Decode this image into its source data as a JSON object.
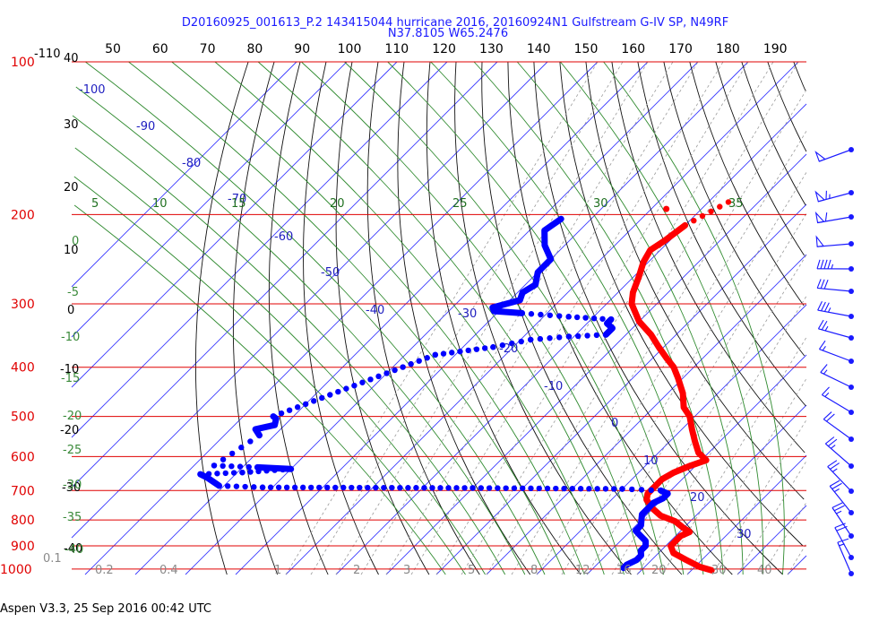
{
  "header": {
    "title_line1": "D20160925_001613_P.2 143415044 hurricane 2016, 20160924N1 Gulfstream G-IV SP, N49RF",
    "title_line2": "N37.8105 W65.2476"
  },
  "footer": {
    "text": "Aspen V3.3, 25 Sep 2016  00:42 UTC"
  },
  "chart_data": {
    "type": "line",
    "diagram": "skew-T log-P",
    "top_axis_ticks": [
      "50",
      "60",
      "70",
      "80",
      "90",
      "100",
      "110",
      "120",
      "130",
      "140",
      "150",
      "160",
      "170",
      "180",
      "190"
    ],
    "pressure_levels": [
      {
        "value": 100,
        "label": "100"
      },
      {
        "value": 200,
        "label": "200"
      },
      {
        "value": 300,
        "label": "300"
      },
      {
        "value": 400,
        "label": "400"
      },
      {
        "value": 500,
        "label": "500"
      },
      {
        "value": 600,
        "label": "600"
      },
      {
        "value": 700,
        "label": "700"
      },
      {
        "value": 800,
        "label": "800"
      },
      {
        "value": 900,
        "label": "900"
      },
      {
        "value": 1000,
        "label": "1000"
      }
    ],
    "left_temperature_labels": [
      "-110",
      "40",
      "30",
      "20",
      "10",
      "0",
      "-10",
      "-20",
      "-30",
      "-40"
    ],
    "isotherm_labels": [
      "-100",
      "-90",
      "-80",
      "-70",
      "-60",
      "-50",
      "-40",
      "-30",
      "-20",
      "-10",
      "0",
      "10",
      "20",
      "30"
    ],
    "mixing_ratio_labels_top": [
      "5",
      "10",
      "15",
      "20",
      "25",
      "30",
      "35"
    ],
    "theta_labels_left": [
      "0",
      "-5",
      "-10",
      "-15",
      "-20",
      "-25",
      "-30",
      "-35",
      "-40"
    ],
    "mixing_ratio_labels_bottom": [
      "0.1",
      "0.2",
      "0.4",
      "1",
      "2",
      "3",
      "5",
      "8",
      "12",
      "16",
      "20",
      "30",
      "40"
    ],
    "series": [
      {
        "role": "temperature",
        "color": "#ff0000",
        "points": [
          [
            189,
            -46
          ],
          [
            210,
            -50
          ],
          [
            225,
            -51
          ],
          [
            235,
            -52
          ],
          [
            248,
            -51
          ],
          [
            265,
            -49
          ],
          [
            285,
            -47
          ],
          [
            300,
            -45
          ],
          [
            325,
            -40
          ],
          [
            345,
            -35
          ],
          [
            365,
            -31
          ],
          [
            385,
            -27
          ],
          [
            400,
            -24
          ],
          [
            420,
            -21
          ],
          [
            450,
            -17
          ],
          [
            480,
            -14
          ],
          [
            500,
            -11
          ],
          [
            530,
            -8
          ],
          [
            560,
            -5
          ],
          [
            590,
            -2
          ],
          [
            610,
            1
          ],
          [
            625,
            -1
          ],
          [
            645,
            -3
          ],
          [
            665,
            -4
          ],
          [
            690,
            -4
          ],
          [
            710,
            -4
          ],
          [
            730,
            -3
          ],
          [
            760,
            0
          ],
          [
            785,
            3
          ],
          [
            805,
            7
          ],
          [
            830,
            10
          ],
          [
            845,
            12
          ],
          [
            860,
            11
          ],
          [
            880,
            11
          ],
          [
            900,
            11
          ],
          [
            930,
            13
          ],
          [
            960,
            17
          ],
          [
            990,
            21
          ],
          [
            1005,
            24
          ]
        ]
      },
      {
        "role": "dewpoint",
        "color": "#0000ff",
        "points": [
          [
            204,
            -76
          ],
          [
            215,
            -77
          ],
          [
            230,
            -74
          ],
          [
            245,
            -70
          ],
          [
            260,
            -70
          ],
          [
            275,
            -68
          ],
          [
            285,
            -69
          ],
          [
            295,
            -68
          ],
          [
            305,
            -72
          ],
          [
            310,
            -71
          ],
          [
            313,
            -65
          ],
          [
            318,
            -55
          ],
          [
            322,
            -46
          ],
          [
            328,
            -46
          ],
          [
            335,
            -44
          ],
          [
            345,
            -44
          ],
          [
            348,
            -51
          ],
          [
            353,
            -58
          ],
          [
            365,
            -64
          ],
          [
            378,
            -74
          ],
          [
            500,
            -94
          ],
          [
            505,
            -93
          ],
          [
            520,
            -92
          ],
          [
            530,
            -95
          ],
          [
            545,
            -93
          ],
          [
            625,
            -96
          ],
          [
            630,
            -87
          ],
          [
            635,
            -80
          ],
          [
            645,
            -89
          ],
          [
            650,
            -97
          ],
          [
            660,
            -95
          ],
          [
            685,
            -91
          ],
          [
            690,
            -82
          ],
          [
            692,
            -40
          ],
          [
            695,
            -10
          ],
          [
            700,
            -2
          ],
          [
            710,
            0
          ],
          [
            725,
            0
          ],
          [
            740,
            -1
          ],
          [
            760,
            -1
          ],
          [
            780,
            -1
          ],
          [
            800,
            0
          ],
          [
            820,
            1
          ],
          [
            840,
            1
          ],
          [
            860,
            3
          ],
          [
            880,
            5
          ],
          [
            900,
            6
          ],
          [
            920,
            6
          ],
          [
            940,
            7
          ],
          [
            960,
            7
          ],
          [
            980,
            6
          ],
          [
            995,
            6
          ]
        ]
      }
    ],
    "wind_barbs_speed_kt": [
      50,
      65,
      60,
      50,
      45,
      30,
      35,
      25,
      15,
      15,
      15,
      20,
      25,
      25,
      25,
      25,
      20,
      15
    ]
  }
}
